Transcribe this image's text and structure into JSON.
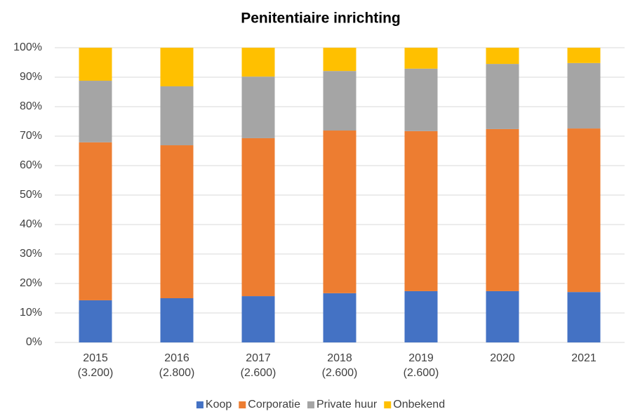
{
  "chart_data": {
    "type": "stacked_bar",
    "title": "Penitentiaire inrichting",
    "categories": [
      "2015\n(3.200)",
      "2016\n(2.800)",
      "2017\n(2.600)",
      "2018\n(2.600)",
      "2019\n(2.600)",
      "2020",
      "2021"
    ],
    "series": [
      {
        "name": "Koop",
        "color": "#4472c4",
        "values": [
          14.3,
          15.0,
          15.7,
          16.7,
          17.4,
          17.4,
          17.1
        ]
      },
      {
        "name": "Corporatie",
        "color": "#ed7d31",
        "values": [
          53.6,
          51.9,
          53.6,
          55.2,
          54.3,
          55.0,
          55.5
        ]
      },
      {
        "name": "Private huur",
        "color": "#a5a5a5",
        "values": [
          20.9,
          20.0,
          20.9,
          20.2,
          21.2,
          22.1,
          22.2
        ]
      },
      {
        "name": "Onbekend",
        "color": "#ffc000",
        "values": [
          11.2,
          13.1,
          9.8,
          7.9,
          7.1,
          5.5,
          5.2
        ]
      }
    ],
    "ylim": [
      0,
      100
    ],
    "yticks": [
      {
        "value": 0,
        "label": "0%"
      },
      {
        "value": 10,
        "label": "10%"
      },
      {
        "value": 20,
        "label": "20%"
      },
      {
        "value": 30,
        "label": "30%"
      },
      {
        "value": 40,
        "label": "40%"
      },
      {
        "value": 50,
        "label": "50%"
      },
      {
        "value": 60,
        "label": "60%"
      },
      {
        "value": 70,
        "label": "70%"
      },
      {
        "value": 80,
        "label": "80%"
      },
      {
        "value": 90,
        "label": "90%"
      },
      {
        "value": 100,
        "label": "100%"
      }
    ],
    "grid": true,
    "legend": "bottom"
  }
}
